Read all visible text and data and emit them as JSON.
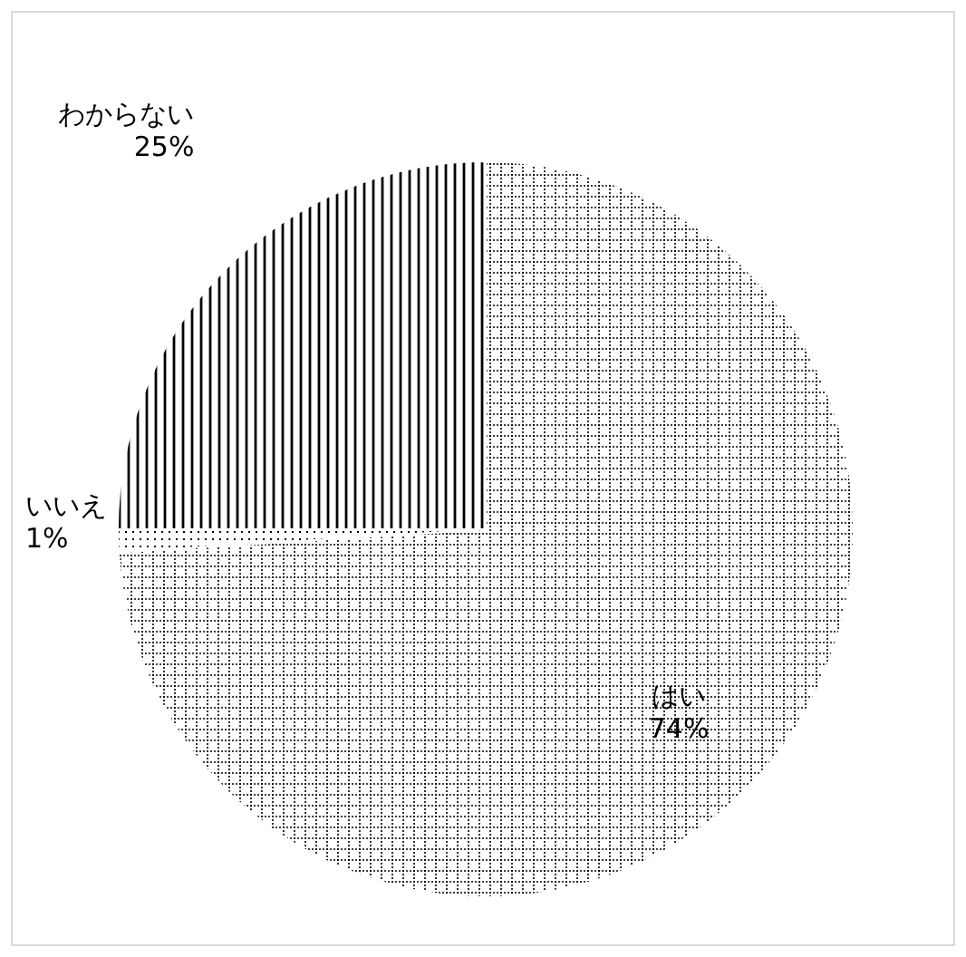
{
  "chart_data": {
    "type": "pie",
    "categories": [
      "はい",
      "いいえ",
      "わからない"
    ],
    "values": [
      74,
      1,
      25
    ],
    "value_labels": [
      "74%",
      "1%",
      "25%"
    ]
  }
}
